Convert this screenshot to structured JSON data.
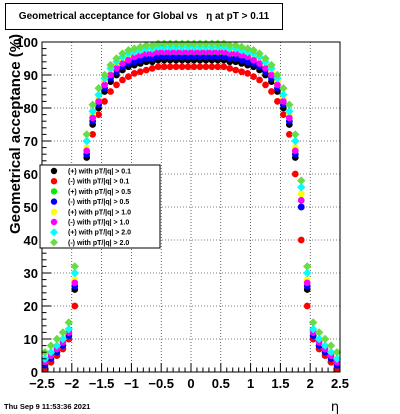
{
  "chart_data": {
    "type": "scatter",
    "title": "Geometrical acceptance for Global vs   η at pT > 0.11",
    "xlabel": "η",
    "ylabel": "Geometrical acceptance (%)",
    "xlim": [
      -2.5,
      2.5
    ],
    "ylim": [
      0,
      100
    ],
    "xticks": [
      "−2.5",
      "−2",
      "−1.5",
      "−1",
      "−0.5",
      "0",
      "0.5",
      "1",
      "1.5",
      "2",
      "2.5"
    ],
    "yticks": [
      "0",
      "10",
      "20",
      "30",
      "40",
      "50",
      "60",
      "70",
      "80",
      "90",
      "100"
    ],
    "grid": true,
    "legend_position": "left-middle",
    "x": [
      -2.45,
      -2.35,
      -2.25,
      -2.15,
      -2.05,
      -1.95,
      -1.85,
      -1.75,
      -1.65,
      -1.55,
      -1.45,
      -1.35,
      -1.25,
      -1.15,
      -1.05,
      -0.95,
      -0.85,
      -0.75,
      -0.65,
      -0.55,
      -0.45,
      -0.35,
      -0.25,
      -0.15,
      -0.05,
      0.05,
      0.15,
      0.25,
      0.35,
      0.45,
      0.55,
      0.65,
      0.75,
      0.85,
      0.95,
      1.05,
      1.15,
      1.25,
      1.35,
      1.45,
      1.55,
      1.65,
      1.75,
      1.85,
      1.95,
      2.05,
      2.15,
      2.25,
      2.35,
      2.45
    ],
    "series": [
      {
        "name": "(+) with pT/|q| > 0.1",
        "color": "#000000",
        "marker": "circle",
        "values": [
          1,
          3,
          5,
          7,
          10,
          25,
          50,
          65,
          75,
          80,
          85,
          88,
          90,
          91.5,
          92.5,
          93,
          93.5,
          94,
          94,
          94.5,
          94.5,
          94.5,
          94.5,
          94.5,
          94.5,
          94.5,
          94.5,
          94.5,
          94.5,
          94.5,
          94.5,
          94,
          94,
          93.5,
          93,
          92.5,
          91.5,
          90,
          88,
          85,
          80,
          75,
          65,
          50,
          25,
          10,
          7,
          5,
          3,
          1
        ]
      },
      {
        "name": "(-) with pT/|q| > 0.1",
        "color": "#ff0000",
        "marker": "circle",
        "values": [
          1,
          3,
          5,
          7,
          10,
          20,
          40,
          60,
          72,
          78,
          82,
          85,
          87,
          88.5,
          89.5,
          90.5,
          91,
          91.5,
          92,
          92.5,
          92.5,
          92.5,
          92.5,
          92.5,
          92.5,
          92.5,
          92.5,
          92.5,
          92.5,
          92.5,
          92.5,
          92,
          91.5,
          91,
          90.5,
          89.5,
          88.5,
          87,
          85,
          82,
          78,
          72,
          60,
          40,
          20,
          10,
          7,
          5,
          3,
          1
        ]
      },
      {
        "name": "(+) with pT/|q| > 0.5",
        "color": "#00ee00",
        "marker": "circle",
        "values": [
          2,
          4,
          6,
          8,
          11,
          27,
          52,
          67,
          77,
          82,
          87,
          90,
          92,
          93.5,
          94.5,
          95,
          95.5,
          96,
          96,
          96.5,
          96.5,
          96.5,
          96.5,
          96.5,
          96.5,
          96.5,
          96.5,
          96.5,
          96.5,
          96.5,
          96.5,
          96,
          96,
          95.5,
          95,
          94.5,
          93.5,
          92,
          90,
          87,
          82,
          77,
          67,
          52,
          27,
          11,
          8,
          6,
          4,
          2
        ]
      },
      {
        "name": "(-) with pT/|q| > 0.5",
        "color": "#0000ff",
        "marker": "circle",
        "values": [
          2,
          4,
          6,
          8,
          11,
          26,
          50,
          66,
          76,
          81,
          86,
          89,
          91,
          92.5,
          93.5,
          94,
          94.5,
          95,
          95,
          95.5,
          95.5,
          95.5,
          95.5,
          95.5,
          95.5,
          95.5,
          95.5,
          95.5,
          95.5,
          95.5,
          95.5,
          95,
          95,
          94.5,
          94,
          93.5,
          92.5,
          91,
          89,
          86,
          81,
          76,
          66,
          50,
          26,
          11,
          8,
          6,
          4,
          2
        ]
      },
      {
        "name": "(+) with pT/|q| > 1.0",
        "color": "#ffff00",
        "marker": "circle",
        "values": [
          3,
          5,
          7,
          9,
          12,
          28,
          54,
          68,
          78,
          83,
          88,
          91,
          93,
          94.5,
          95.5,
          96,
          96.5,
          97,
          97,
          97.5,
          97.5,
          97.5,
          97.5,
          97.5,
          97.5,
          97.5,
          97.5,
          97.5,
          97.5,
          97.5,
          97.5,
          97,
          97,
          96.5,
          96,
          95.5,
          94.5,
          93,
          91,
          88,
          83,
          78,
          68,
          54,
          28,
          12,
          9,
          7,
          5,
          3
        ]
      },
      {
        "name": "(-) with pT/|q| > 1.0",
        "color": "#ff00ff",
        "marker": "circle",
        "values": [
          3,
          5,
          7,
          9,
          12,
          27,
          52,
          67,
          77,
          82,
          87,
          90,
          92,
          93.5,
          94.5,
          95.5,
          96,
          96.5,
          96.5,
          97,
          97,
          97,
          97,
          97,
          97,
          97,
          97,
          97,
          97,
          97,
          97,
          96.5,
          96.5,
          96,
          95.5,
          94.5,
          93.5,
          92,
          90,
          87,
          82,
          77,
          67,
          52,
          27,
          12,
          9,
          7,
          5,
          3
        ]
      },
      {
        "name": "(+) with pT/|q| > 2.0",
        "color": "#00ffff",
        "marker": "diamond",
        "values": [
          4,
          6,
          8,
          10,
          13,
          30,
          56,
          70,
          79,
          84,
          89,
          92,
          94,
          95.5,
          96.5,
          97,
          97.5,
          98,
          98,
          98.5,
          98.5,
          98.5,
          98.5,
          98.5,
          98.5,
          98.5,
          98.5,
          98.5,
          98.5,
          98.5,
          98.5,
          98,
          98,
          97.5,
          97,
          96.5,
          95.5,
          94,
          92,
          89,
          84,
          79,
          70,
          56,
          30,
          13,
          10,
          8,
          6,
          4
        ]
      },
      {
        "name": "(-) with pT/|q| > 2.0",
        "color": "#66dd44",
        "marker": "diamond",
        "values": [
          6,
          8,
          10,
          12,
          15,
          32,
          58,
          72,
          81,
          86,
          90,
          93,
          95,
          96.5,
          97.5,
          98,
          98.5,
          99,
          99,
          99.5,
          99.5,
          99.5,
          99.5,
          99.5,
          99.5,
          99.5,
          99.5,
          99.5,
          99.5,
          99.5,
          99.5,
          99,
          99,
          98.5,
          98,
          97.5,
          96.5,
          95,
          93,
          90,
          86,
          81,
          72,
          58,
          32,
          15,
          12,
          10,
          8,
          6
        ]
      }
    ]
  },
  "footer": {
    "timestamp": "Thu Sep  9 11:53:36 2021"
  }
}
